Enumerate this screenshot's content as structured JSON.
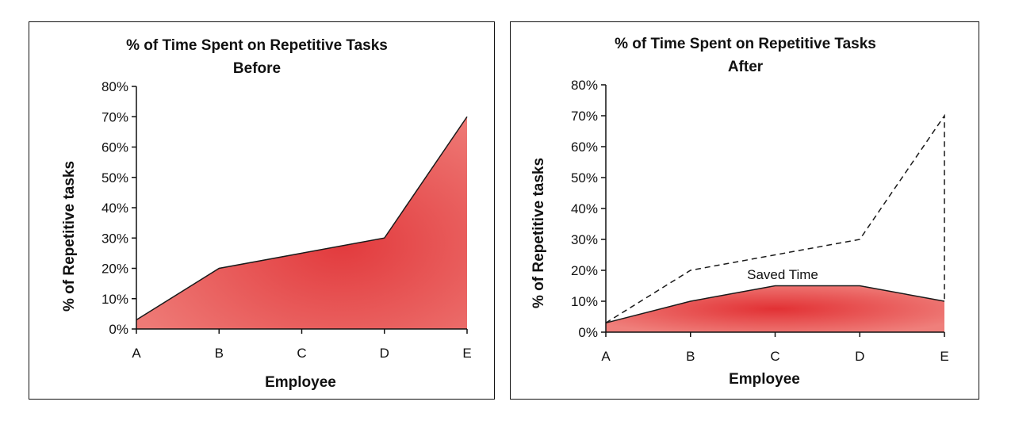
{
  "chart_data": [
    {
      "type": "area",
      "title": "% of Time Spent on Repetitive Tasks",
      "subtitle": "Before",
      "xlabel": "Employee",
      "ylabel": "% of Repetitive tasks",
      "categories": [
        "A",
        "B",
        "C",
        "D",
        "E"
      ],
      "ylim": [
        0,
        80
      ],
      "yticks": [
        "0%",
        "10%",
        "20%",
        "30%",
        "40%",
        "50%",
        "60%",
        "70%",
        "80%"
      ],
      "series": [
        {
          "values": [
            3,
            20,
            25,
            30,
            70
          ],
          "color": "#e8464a"
        }
      ],
      "grid": false
    },
    {
      "type": "area",
      "title": "% of Time Spent on Repetitive Tasks",
      "subtitle": "After",
      "xlabel": "Employee",
      "ylabel": "% of Repetitive tasks",
      "categories": [
        "A",
        "B",
        "C",
        "D",
        "E"
      ],
      "ylim": [
        0,
        80
      ],
      "yticks": [
        "0%",
        "10%",
        "20%",
        "30%",
        "40%",
        "50%",
        "60%",
        "70%",
        "80%"
      ],
      "series": [
        {
          "values": [
            3,
            10,
            15,
            15,
            10
          ],
          "color": "#e8464a"
        },
        {
          "values": [
            3,
            20,
            25,
            30,
            70
          ],
          "style": "dashed"
        }
      ],
      "annotation": "Saved Time",
      "grid": false
    }
  ]
}
